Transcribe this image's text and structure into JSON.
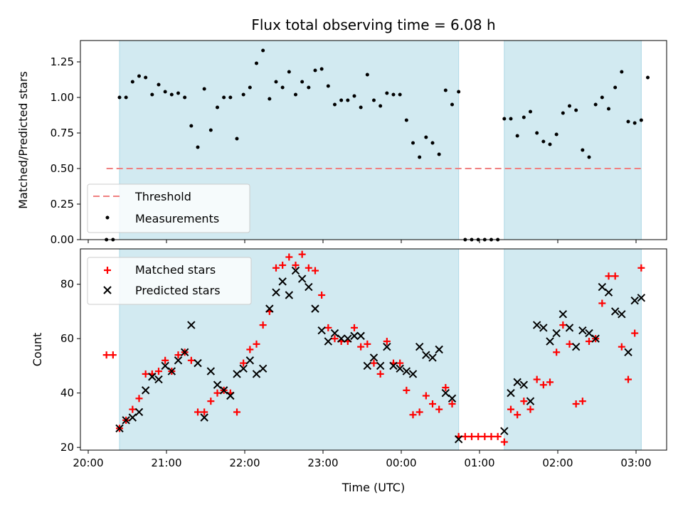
{
  "chart_data": {
    "type": "scatter",
    "title": "Flux total observing time = 6.08 h",
    "xlabel": "Time (UTC)",
    "x_ticks": [
      "20:00",
      "21:00",
      "22:00",
      "23:00",
      "00:00",
      "01:00",
      "02:00",
      "03:00"
    ],
    "observing_windows": [
      [
        "20:24",
        "00:44"
      ],
      [
        "01:19",
        "03:04"
      ]
    ],
    "colors": {
      "matched": "#ff0000",
      "predicted": "#000000",
      "threshold": "#f08080",
      "window": "#add8e6",
      "measurement": "#000000"
    },
    "top_panel": {
      "ylabel": "Matched/Predicted stars",
      "ylim": [
        0,
        1.4
      ],
      "y_ticks": [
        "0.00",
        "0.25",
        "0.50",
        "0.75",
        "1.00",
        "1.25"
      ],
      "legend": {
        "placement": "lower-left",
        "threshold_label": "Threshold",
        "measurements_label": "Measurements"
      },
      "threshold": {
        "value": 0.5,
        "x_from": "20:14",
        "x_to": "03:04"
      },
      "measurements": [
        [
          "20:14",
          0
        ],
        [
          "20:19",
          0
        ],
        [
          "20:24",
          1.0
        ],
        [
          "20:29",
          1.0
        ],
        [
          "20:34",
          1.11
        ],
        [
          "20:39",
          1.15
        ],
        [
          "20:44",
          1.14
        ],
        [
          "20:49",
          1.02
        ],
        [
          "20:54",
          1.09
        ],
        [
          "20:59",
          1.04
        ],
        [
          "21:04",
          1.02
        ],
        [
          "21:09",
          1.03
        ],
        [
          "21:14",
          1.0
        ],
        [
          "21:19",
          0.8
        ],
        [
          "21:24",
          0.65
        ],
        [
          "21:29",
          1.06
        ],
        [
          "21:34",
          0.77
        ],
        [
          "21:39",
          0.93
        ],
        [
          "21:44",
          1.0
        ],
        [
          "21:49",
          1.0
        ],
        [
          "21:54",
          0.71
        ],
        [
          "21:59",
          1.02
        ],
        [
          "22:04",
          1.07
        ],
        [
          "22:09",
          1.24
        ],
        [
          "22:14",
          1.33
        ],
        [
          "22:19",
          0.99
        ],
        [
          "22:24",
          1.11
        ],
        [
          "22:29",
          1.07
        ],
        [
          "22:34",
          1.18
        ],
        [
          "22:39",
          1.02
        ],
        [
          "22:44",
          1.11
        ],
        [
          "22:49",
          1.07
        ],
        [
          "22:54",
          1.19
        ],
        [
          "22:59",
          1.2
        ],
        [
          "23:04",
          1.08
        ],
        [
          "23:09",
          0.95
        ],
        [
          "23:14",
          0.98
        ],
        [
          "23:19",
          0.98
        ],
        [
          "23:24",
          1.01
        ],
        [
          "23:29",
          0.93
        ],
        [
          "23:34",
          1.16
        ],
        [
          "23:39",
          0.98
        ],
        [
          "23:44",
          0.94
        ],
        [
          "23:49",
          1.03
        ],
        [
          "23:54",
          1.02
        ],
        [
          "23:59",
          1.02
        ],
        [
          "00:04",
          0.84
        ],
        [
          "00:09",
          0.68
        ],
        [
          "00:14",
          0.58
        ],
        [
          "00:19",
          0.72
        ],
        [
          "00:24",
          0.68
        ],
        [
          "00:29",
          0.6
        ],
        [
          "00:34",
          1.05
        ],
        [
          "00:39",
          0.95
        ],
        [
          "00:44",
          1.04
        ],
        [
          "00:49",
          0
        ],
        [
          "00:54",
          0
        ],
        [
          "00:59",
          0
        ],
        [
          "01:04",
          0
        ],
        [
          "01:09",
          0
        ],
        [
          "01:14",
          0
        ],
        [
          "01:19",
          0.85
        ],
        [
          "01:24",
          0.85
        ],
        [
          "01:29",
          0.73
        ],
        [
          "01:34",
          0.86
        ],
        [
          "01:39",
          0.9
        ],
        [
          "01:44",
          0.75
        ],
        [
          "01:49",
          0.69
        ],
        [
          "01:54",
          0.67
        ],
        [
          "01:59",
          0.74
        ],
        [
          "02:04",
          0.89
        ],
        [
          "02:09",
          0.94
        ],
        [
          "02:14",
          0.91
        ],
        [
          "02:19",
          0.63
        ],
        [
          "02:24",
          0.58
        ],
        [
          "02:29",
          0.95
        ],
        [
          "02:34",
          1.0
        ],
        [
          "02:39",
          0.92
        ],
        [
          "02:44",
          1.07
        ],
        [
          "02:49",
          1.18
        ],
        [
          "02:54",
          0.83
        ],
        [
          "02:59",
          0.82
        ],
        [
          "03:04",
          0.84
        ],
        [
          "03:09",
          1.14
        ]
      ]
    },
    "bottom_panel": {
      "ylabel": "Count",
      "ylim": [
        19,
        93
      ],
      "y_ticks": [
        "20",
        "40",
        "60",
        "80"
      ],
      "legend": {
        "placement": "top-left",
        "matched_label": "Matched stars",
        "predicted_label": "Predicted stars"
      },
      "series": [
        {
          "name": "Matched stars",
          "marker": "+",
          "points": [
            [
              "20:14",
              54
            ],
            [
              "20:19",
              54
            ],
            [
              "20:24",
              27
            ],
            [
              "20:29",
              30
            ],
            [
              "20:34",
              34
            ],
            [
              "20:39",
              38
            ],
            [
              "20:44",
              47
            ],
            [
              "20:49",
              47
            ],
            [
              "20:54",
              48
            ],
            [
              "20:59",
              52
            ],
            [
              "21:04",
              48
            ],
            [
              "21:09",
              54
            ],
            [
              "21:14",
              55
            ],
            [
              "21:19",
              52
            ],
            [
              "21:24",
              33
            ],
            [
              "21:29",
              33
            ],
            [
              "21:34",
              37
            ],
            [
              "21:39",
              40
            ],
            [
              "21:44",
              41
            ],
            [
              "21:49",
              40
            ],
            [
              "21:54",
              33
            ],
            [
              "21:59",
              51
            ],
            [
              "22:04",
              56
            ],
            [
              "22:09",
              58
            ],
            [
              "22:14",
              65
            ],
            [
              "22:19",
              70
            ],
            [
              "22:24",
              86
            ],
            [
              "22:29",
              87
            ],
            [
              "22:34",
              90
            ],
            [
              "22:39",
              87
            ],
            [
              "22:44",
              91
            ],
            [
              "22:49",
              86
            ],
            [
              "22:54",
              85
            ],
            [
              "22:59",
              76
            ],
            [
              "23:04",
              64
            ],
            [
              "23:09",
              60
            ],
            [
              "23:14",
              59
            ],
            [
              "23:19",
              59
            ],
            [
              "23:24",
              64
            ],
            [
              "23:29",
              57
            ],
            [
              "23:34",
              58
            ],
            [
              "23:39",
              51
            ],
            [
              "23:44",
              47
            ],
            [
              "23:49",
              59
            ],
            [
              "23:54",
              51
            ],
            [
              "23:59",
              51
            ],
            [
              "00:04",
              41
            ],
            [
              "00:09",
              32
            ],
            [
              "00:14",
              33
            ],
            [
              "00:19",
              39
            ],
            [
              "00:24",
              36
            ],
            [
              "00:29",
              34
            ],
            [
              "00:34",
              42
            ],
            [
              "00:39",
              36
            ],
            [
              "00:44",
              24
            ],
            [
              "00:49",
              24
            ],
            [
              "00:54",
              24
            ],
            [
              "00:59",
              24
            ],
            [
              "01:04",
              24
            ],
            [
              "01:09",
              24
            ],
            [
              "01:14",
              24
            ],
            [
              "01:19",
              22
            ],
            [
              "01:24",
              34
            ],
            [
              "01:29",
              32
            ],
            [
              "01:34",
              37
            ],
            [
              "01:39",
              34
            ],
            [
              "01:44",
              45
            ],
            [
              "01:49",
              43
            ],
            [
              "01:54",
              44
            ],
            [
              "01:59",
              55
            ],
            [
              "02:04",
              65
            ],
            [
              "02:09",
              58
            ],
            [
              "02:14",
              36
            ],
            [
              "02:19",
              37
            ],
            [
              "02:24",
              59
            ],
            [
              "02:29",
              60
            ],
            [
              "02:34",
              73
            ],
            [
              "02:39",
              83
            ],
            [
              "02:44",
              83
            ],
            [
              "02:49",
              57
            ],
            [
              "02:54",
              45
            ],
            [
              "02:59",
              62
            ],
            [
              "03:04",
              86
            ]
          ]
        },
        {
          "name": "Predicted stars",
          "marker": "x",
          "points": [
            [
              "20:24",
              27
            ],
            [
              "20:29",
              30
            ],
            [
              "20:34",
              31
            ],
            [
              "20:39",
              33
            ],
            [
              "20:44",
              41
            ],
            [
              "20:49",
              46
            ],
            [
              "20:54",
              45
            ],
            [
              "20:59",
              50
            ],
            [
              "21:04",
              48
            ],
            [
              "21:09",
              52
            ],
            [
              "21:14",
              55
            ],
            [
              "21:19",
              65
            ],
            [
              "21:24",
              51
            ],
            [
              "21:29",
              31
            ],
            [
              "21:34",
              48
            ],
            [
              "21:39",
              43
            ],
            [
              "21:44",
              41
            ],
            [
              "21:49",
              39
            ],
            [
              "21:54",
              47
            ],
            [
              "21:59",
              49
            ],
            [
              "22:04",
              52
            ],
            [
              "22:09",
              47
            ],
            [
              "22:14",
              49
            ],
            [
              "22:19",
              71
            ],
            [
              "22:24",
              77
            ],
            [
              "22:29",
              81
            ],
            [
              "22:34",
              76
            ],
            [
              "22:39",
              85
            ],
            [
              "22:44",
              82
            ],
            [
              "22:49",
              79
            ],
            [
              "22:54",
              71
            ],
            [
              "22:59",
              63
            ],
            [
              "23:04",
              59
            ],
            [
              "23:09",
              62
            ],
            [
              "23:14",
              60
            ],
            [
              "23:19",
              60
            ],
            [
              "23:24",
              61
            ],
            [
              "23:29",
              61
            ],
            [
              "23:34",
              50
            ],
            [
              "23:39",
              53
            ],
            [
              "23:44",
              50
            ],
            [
              "23:49",
              57
            ],
            [
              "23:54",
              50
            ],
            [
              "23:59",
              49
            ],
            [
              "00:04",
              48
            ],
            [
              "00:09",
              47
            ],
            [
              "00:14",
              57
            ],
            [
              "00:19",
              54
            ],
            [
              "00:24",
              53
            ],
            [
              "00:29",
              56
            ],
            [
              "00:34",
              40
            ],
            [
              "00:39",
              38
            ],
            [
              "00:44",
              23
            ],
            [
              "01:19",
              26
            ],
            [
              "01:24",
              40
            ],
            [
              "01:29",
              44
            ],
            [
              "01:34",
              43
            ],
            [
              "01:39",
              37
            ],
            [
              "01:44",
              65
            ],
            [
              "01:49",
              64
            ],
            [
              "01:54",
              59
            ],
            [
              "01:59",
              62
            ],
            [
              "02:04",
              69
            ],
            [
              "02:09",
              64
            ],
            [
              "02:14",
              57
            ],
            [
              "02:19",
              63
            ],
            [
              "02:24",
              62
            ],
            [
              "02:29",
              60
            ],
            [
              "02:34",
              79
            ],
            [
              "02:39",
              77
            ],
            [
              "02:44",
              70
            ],
            [
              "02:49",
              69
            ],
            [
              "02:54",
              55
            ],
            [
              "02:59",
              74
            ],
            [
              "03:04",
              75
            ]
          ]
        }
      ]
    }
  }
}
